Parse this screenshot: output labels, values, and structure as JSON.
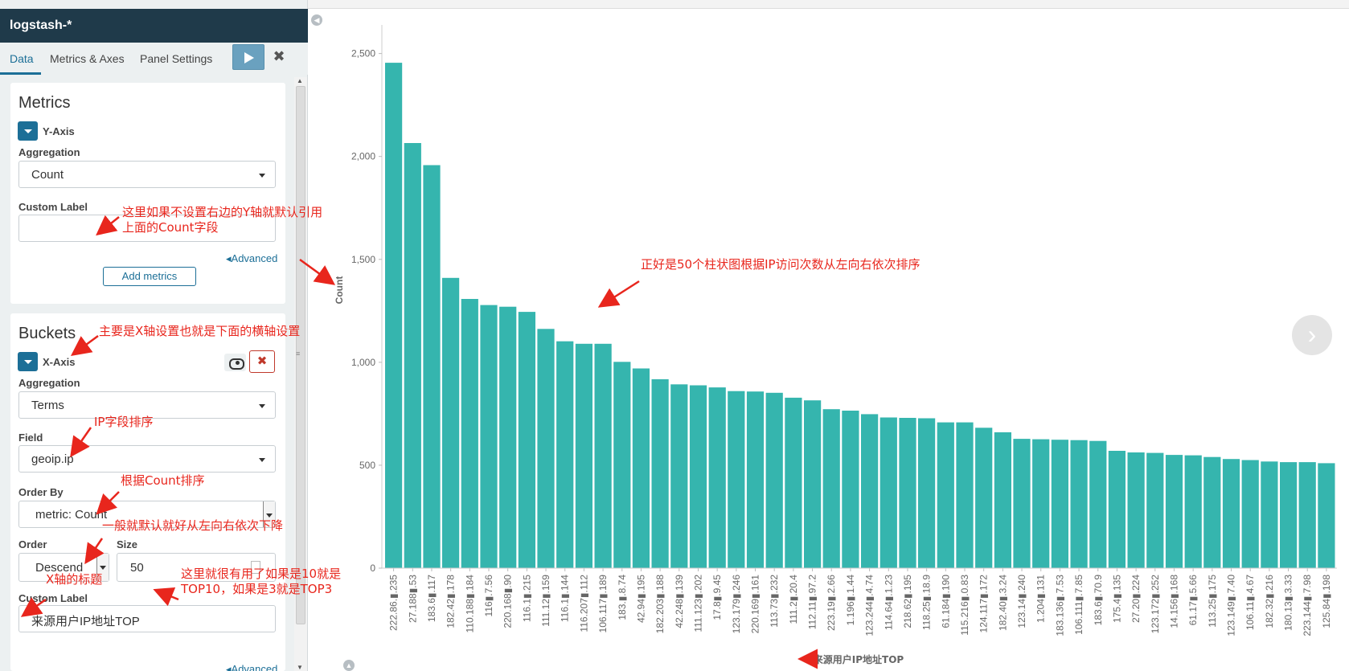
{
  "index_pattern": "logstash-*",
  "tabs": [
    {
      "label": "Data"
    },
    {
      "label": "Metrics & Axes"
    },
    {
      "label": "Panel Settings"
    }
  ],
  "metrics": {
    "title": "Metrics",
    "agg_name": "Y-Axis",
    "aggregation_label": "Aggregation",
    "aggregation_value": "Count",
    "custom_label_label": "Custom Label",
    "custom_label_value": "",
    "advanced_link": "Advanced",
    "add_metrics_button": "Add metrics"
  },
  "buckets": {
    "title": "Buckets",
    "agg_name": "X-Axis",
    "aggregation_label": "Aggregation",
    "aggregation_value": "Terms",
    "field_label": "Field",
    "field_value": "geoip.ip",
    "order_by_label": "Order By",
    "order_by_value": "metric: Count",
    "order_label": "Order",
    "order_value": "Descend",
    "size_label": "Size",
    "size_value": "50",
    "custom_label_label": "Custom Label",
    "custom_label_value": "来源用户IP地址TOP",
    "advanced_link": "Advanced"
  },
  "annotations": {
    "custom_label_note_line1": "这里如果不设置右边的Y轴就默认引用",
    "custom_label_note_line2": "上面的Count字段",
    "xaxis_note": "主要是X轴设置也就是下面的横轴设置",
    "field_note": "IP字段排序",
    "order_by_note": "根据Count排序",
    "order_note": "一般就默认就好从左向右依次下降",
    "size_note_line1": "这里就很有用了如果是10就是",
    "size_note_line2": "TOP10，如果是3就是TOP3",
    "xaxis_title_note": "X轴的标题",
    "chart_note": "正好是50个柱状图根据IP访问次数从左向右依次排序"
  },
  "colors": {
    "bar": "#35b5ae",
    "header": "#1f3a4a",
    "accent": "#1c6f97",
    "annotation": "#e8261d"
  },
  "chart_data": {
    "type": "bar",
    "ylabel": "Count",
    "xlabel": "来源用户IP地址TOP",
    "ylim": [
      0,
      2600
    ],
    "yticks": [
      0,
      500,
      "1,000",
      "1,500",
      "2,000",
      "2,500"
    ],
    "categories": [
      "222.86.▮.235",
      "27.188▮.53",
      "183.6▮.117",
      "182.42▮.178",
      "110.188▮.184",
      "116▮.7.56",
      "220.168▮.90",
      "116.1▮.215",
      "111.12▮.159",
      "116.1▮.144",
      "116.207▮.112",
      "106.117▮.189",
      "183.▮.8.74",
      "42.94▮.195",
      "182.203▮.188",
      "42.248▮.139",
      "111.123▮.202",
      "17.8▮.9.45",
      "123.179▮.246",
      "220.169▮.161",
      "113.73▮.232",
      "111.2▮.20.4",
      "112.11▮.97.2",
      "223.19▮.2.66",
      "1.196▮.1.44",
      "123.244▮.4.74",
      "114.64▮.1.23",
      "218.62▮.195",
      "118.25▮.18.9",
      "61.184▮.190",
      "115.216▮.0.83",
      "124.117▮.172",
      "182.40▮.3.24",
      "123.14▮.240",
      "1.204▮.131",
      "183.136▮.7.53",
      "106.111▮.7.85",
      "183.6▮.70.9",
      "175.4▮.135",
      "27.20▮.224",
      "123.172▮.252",
      "14.156▮.168",
      "61.17▮.5.66",
      "113.25▮.175",
      "123.149▮.7.40",
      "106.11▮.4.67",
      "182.32▮.216",
      "180.13▮.3.33",
      "223.144▮.7.98",
      "125.84▮.198"
    ],
    "values": [
      2455,
      2065,
      1958,
      1410,
      1308,
      1278,
      1270,
      1245,
      1162,
      1102,
      1090,
      1090,
      1002,
      970,
      918,
      893,
      888,
      878,
      860,
      858,
      852,
      828,
      815,
      772,
      765,
      748,
      732,
      730,
      728,
      708,
      708,
      682,
      660,
      628,
      626,
      624,
      622,
      618,
      570,
      562,
      560,
      550,
      548,
      540,
      530,
      525,
      518,
      515,
      515,
      510
    ]
  }
}
